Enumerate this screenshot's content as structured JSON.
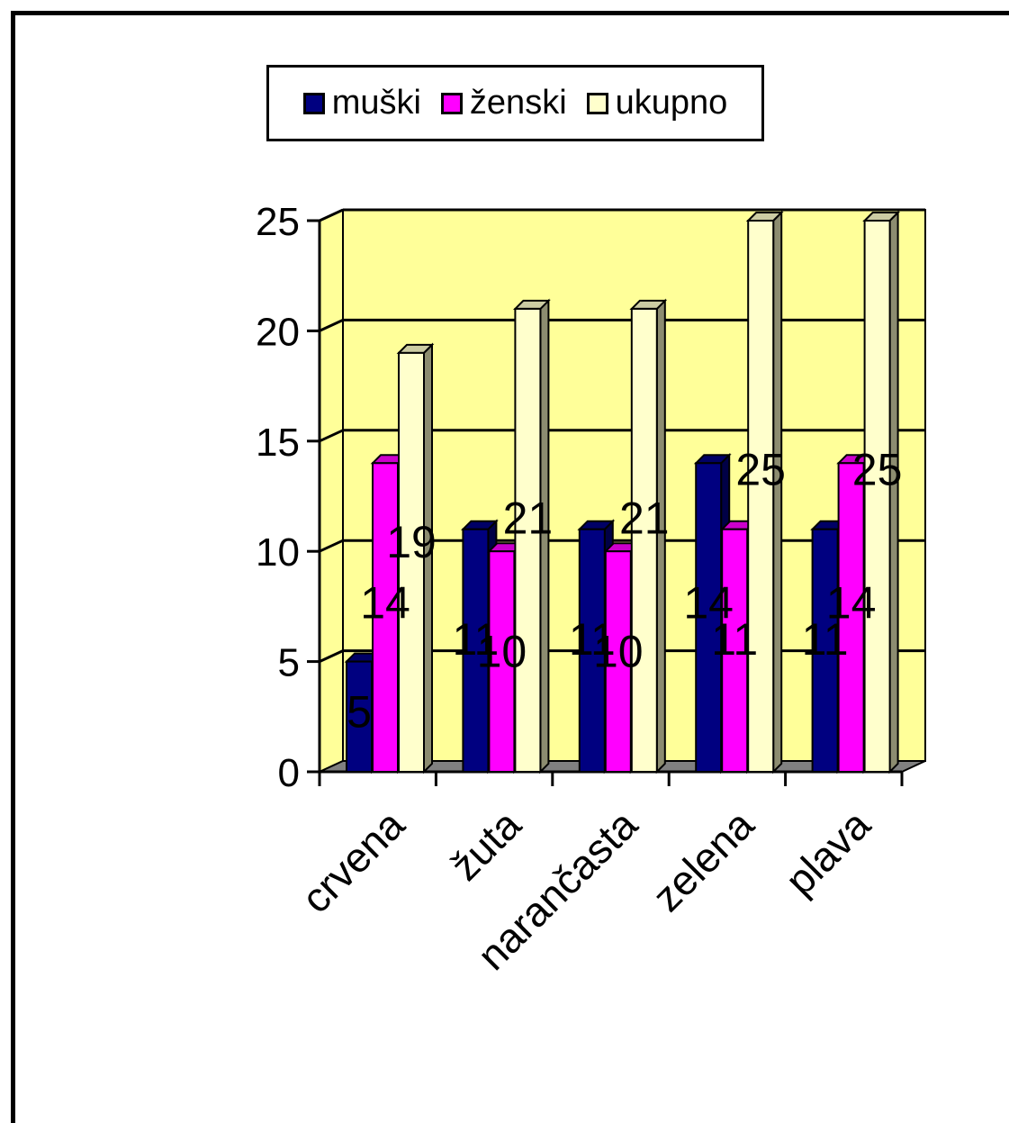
{
  "chart_data": {
    "type": "bar",
    "categories": [
      "crvena",
      "žuta",
      "narančasta",
      "zelena",
      "plava"
    ],
    "series": [
      {
        "name": "muški",
        "values": [
          5,
          11,
          11,
          14,
          11
        ],
        "color": "#000080"
      },
      {
        "name": "ženski",
        "values": [
          14,
          10,
          10,
          11,
          14
        ],
        "color": "#ff00ff"
      },
      {
        "name": "ukupno",
        "values": [
          19,
          21,
          21,
          25,
          25
        ],
        "color": "#ffffcc"
      }
    ],
    "yticks": [
      0,
      5,
      10,
      15,
      20,
      25
    ],
    "ylim": [
      0,
      25
    ],
    "grid": true,
    "legend": "top",
    "wall_color": "#ffff99",
    "floor_color": "#808080"
  }
}
